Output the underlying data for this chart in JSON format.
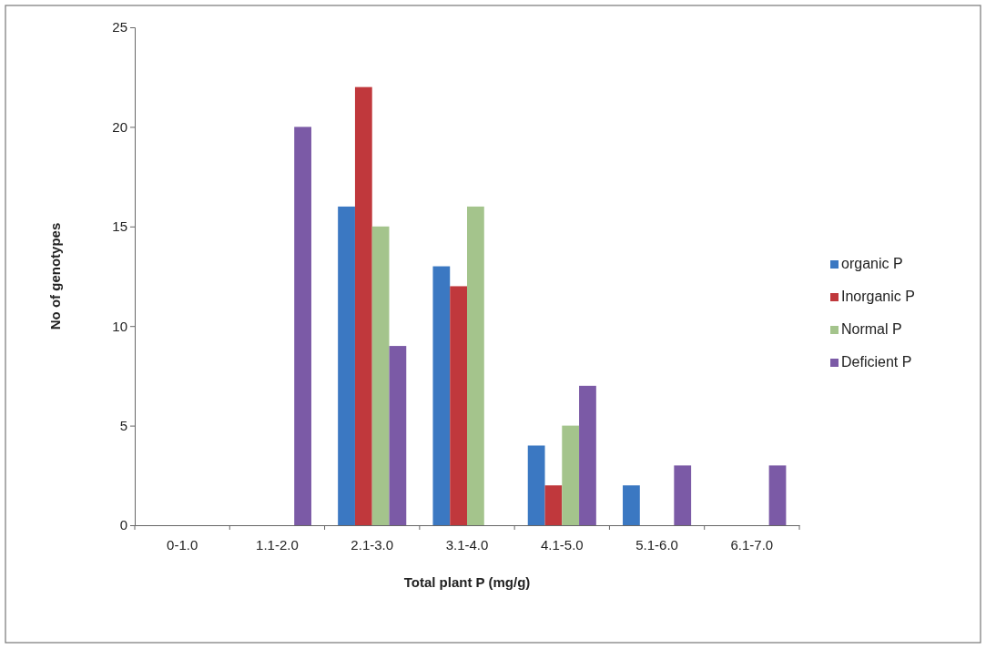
{
  "chart_data": {
    "type": "bar",
    "xlabel": "Total plant P (mg/g)",
    "ylabel": "No of genotypes",
    "categories": [
      "0-1.0",
      "1.1-2.0",
      "2.1-3.0",
      "3.1-4.0",
      "4.1-5.0",
      "5.1-6.0",
      "6.1-7.0"
    ],
    "series": [
      {
        "name": "organic P",
        "color": "#3b78c2",
        "values": [
          0,
          0,
          16,
          13,
          4,
          2,
          0
        ]
      },
      {
        "name": "Inorganic P",
        "color": "#c0383c",
        "values": [
          0,
          0,
          22,
          12,
          2,
          0,
          0
        ]
      },
      {
        "name": "Normal P",
        "color": "#a4c48c",
        "values": [
          0,
          0,
          15,
          16,
          5,
          0,
          0
        ]
      },
      {
        "name": "Deficient P",
        "color": "#7b5aa6",
        "values": [
          0,
          20,
          9,
          0,
          7,
          3,
          3
        ]
      }
    ],
    "ylim": [
      0,
      25
    ],
    "yticks": [
      0,
      5,
      10,
      15,
      20,
      25
    ],
    "legend": "right"
  }
}
